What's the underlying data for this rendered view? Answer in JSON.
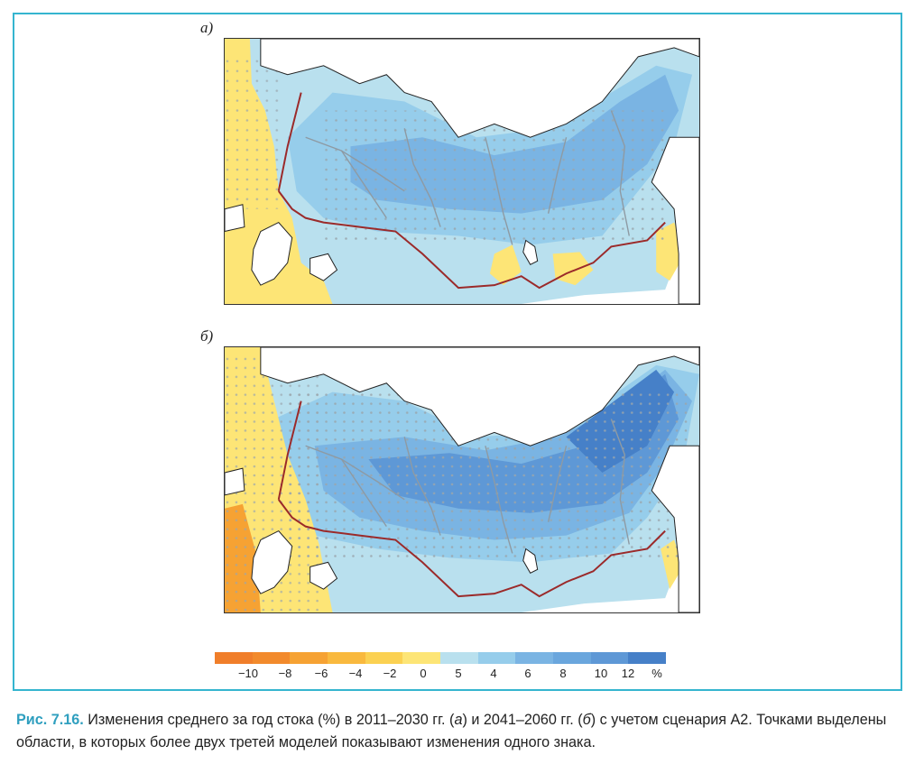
{
  "panels": [
    {
      "id": "a",
      "label": "а)"
    },
    {
      "id": "b",
      "label": "б)"
    }
  ],
  "legend": {
    "ticks": [
      "−10",
      "−8",
      "−6",
      "−4",
      "−2",
      "0",
      "5",
      "4",
      "6",
      "8",
      "10",
      "12",
      "%"
    ],
    "colors": {
      "dry_strong": "#f07e2a",
      "dry_mid": "#f6a233",
      "dry_light": "#fbd152",
      "dry_pale": "#fde576",
      "wet_pale": "#b9e0ee",
      "wet_light": "#96cdeb",
      "wet_mid": "#7ab4e3",
      "wet_strong": "#5e98d6",
      "wet_deep": "#4680c8"
    }
  },
  "caption": {
    "fig_label": "Рис. 7.16.",
    "text_1": " Изменения среднего за год стока (%) в 2011–2030 гг. (",
    "a_mark": "а",
    "text_2": ") и 2041–2060 гг. (",
    "b_mark": "б",
    "text_3": ") с учетом сценария А2. Точками выделены области, в которых более двух третей моделей показывают изменения одного знака."
  }
}
